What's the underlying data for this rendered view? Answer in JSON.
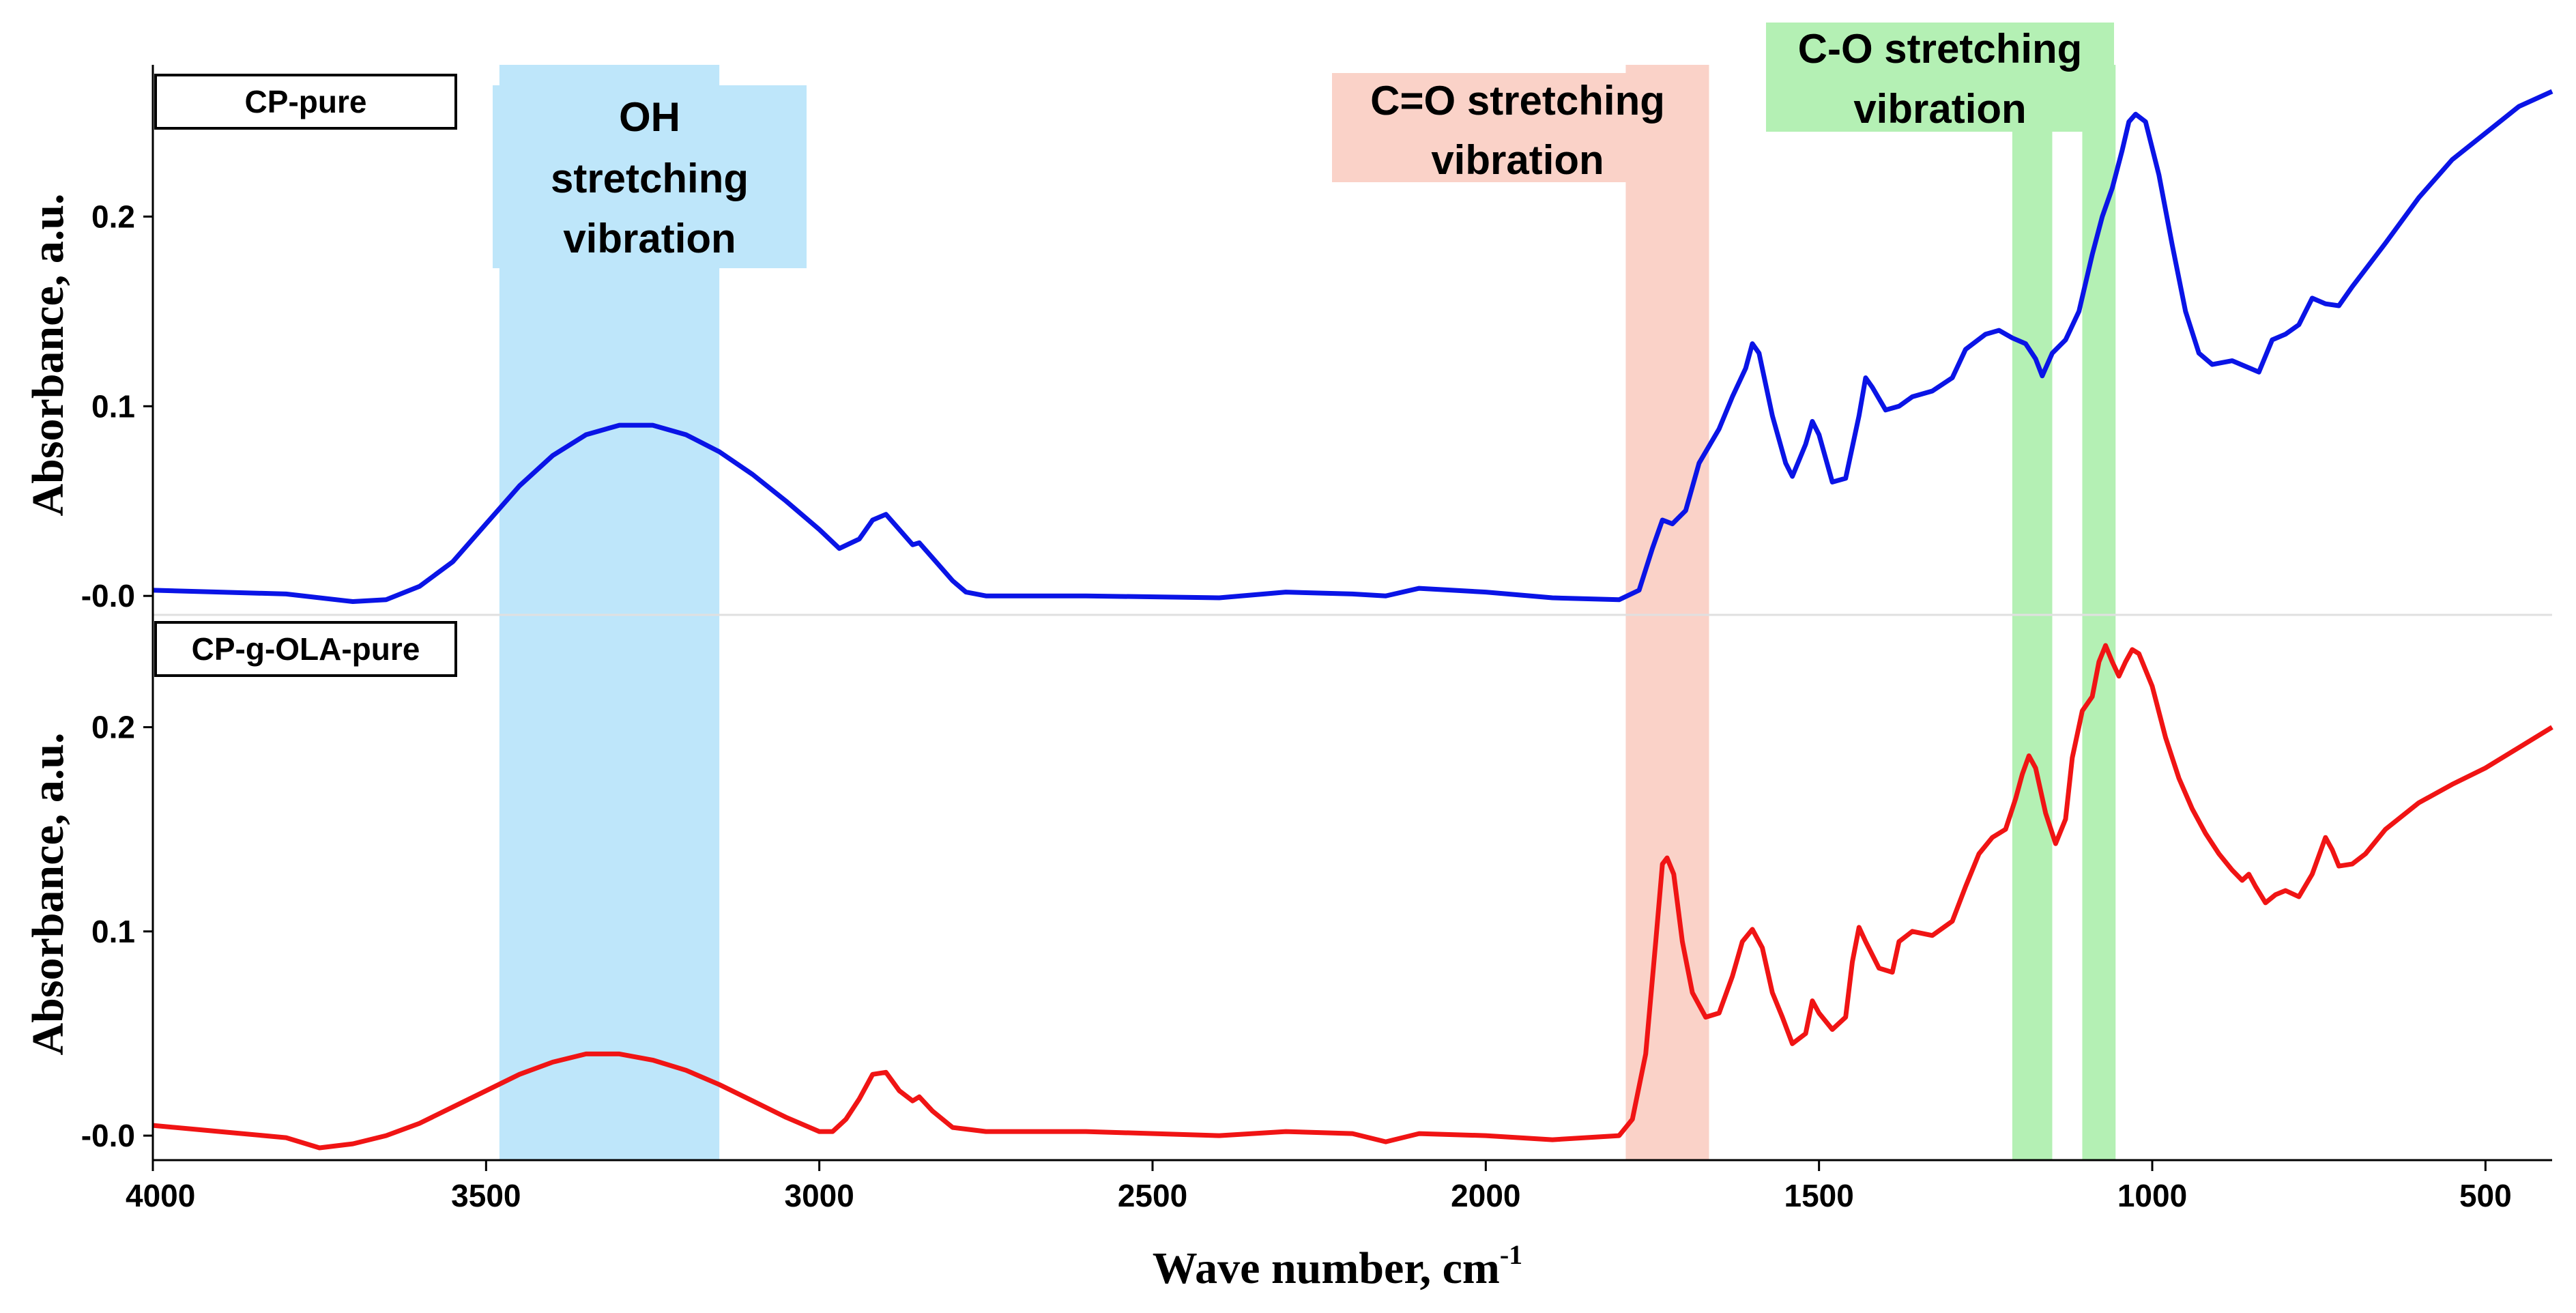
{
  "chart_data": {
    "type": "line",
    "xlabel": "Wave number, cm",
    "xlabel_sup": "-1",
    "xlim": [
      4000,
      400
    ],
    "x_ticks": [
      4000,
      3500,
      3000,
      2500,
      2000,
      1500,
      1000,
      500
    ],
    "y_ticks": [
      "-0.0",
      "0.1",
      "0.2"
    ],
    "panels": [
      {
        "name": "CP-pure",
        "ylabel": "Absorbance, a.u.",
        "ylim": [
          -0.01,
          0.28
        ],
        "color": "#0a14e6",
        "series": [
          [
            4000,
            0.003
          ],
          [
            3900,
            0.002
          ],
          [
            3800,
            0.001
          ],
          [
            3700,
            -0.003
          ],
          [
            3650,
            -0.002
          ],
          [
            3600,
            0.005
          ],
          [
            3550,
            0.018
          ],
          [
            3500,
            0.038
          ],
          [
            3450,
            0.058
          ],
          [
            3400,
            0.074
          ],
          [
            3350,
            0.085
          ],
          [
            3300,
            0.09
          ],
          [
            3250,
            0.09
          ],
          [
            3200,
            0.085
          ],
          [
            3150,
            0.076
          ],
          [
            3100,
            0.064
          ],
          [
            3050,
            0.05
          ],
          [
            3000,
            0.035
          ],
          [
            2970,
            0.025
          ],
          [
            2940,
            0.03
          ],
          [
            2920,
            0.04
          ],
          [
            2900,
            0.043
          ],
          [
            2880,
            0.035
          ],
          [
            2860,
            0.027
          ],
          [
            2850,
            0.028
          ],
          [
            2830,
            0.02
          ],
          [
            2800,
            0.008
          ],
          [
            2780,
            0.002
          ],
          [
            2750,
            0.0
          ],
          [
            2600,
            0.0
          ],
          [
            2400,
            -0.001
          ],
          [
            2300,
            0.002
          ],
          [
            2200,
            0.001
          ],
          [
            2150,
            0.0
          ],
          [
            2100,
            0.004
          ],
          [
            2000,
            0.002
          ],
          [
            1900,
            -0.001
          ],
          [
            1800,
            -0.002
          ],
          [
            1770,
            0.003
          ],
          [
            1750,
            0.025
          ],
          [
            1735,
            0.04
          ],
          [
            1720,
            0.038
          ],
          [
            1700,
            0.045
          ],
          [
            1680,
            0.07
          ],
          [
            1650,
            0.088
          ],
          [
            1630,
            0.105
          ],
          [
            1610,
            0.12
          ],
          [
            1600,
            0.133
          ],
          [
            1590,
            0.128
          ],
          [
            1570,
            0.095
          ],
          [
            1550,
            0.07
          ],
          [
            1540,
            0.063
          ],
          [
            1520,
            0.08
          ],
          [
            1510,
            0.092
          ],
          [
            1500,
            0.085
          ],
          [
            1480,
            0.06
          ],
          [
            1460,
            0.062
          ],
          [
            1440,
            0.095
          ],
          [
            1430,
            0.115
          ],
          [
            1420,
            0.11
          ],
          [
            1400,
            0.098
          ],
          [
            1380,
            0.1
          ],
          [
            1360,
            0.105
          ],
          [
            1330,
            0.108
          ],
          [
            1300,
            0.115
          ],
          [
            1280,
            0.13
          ],
          [
            1250,
            0.138
          ],
          [
            1230,
            0.14
          ],
          [
            1210,
            0.136
          ],
          [
            1190,
            0.133
          ],
          [
            1175,
            0.125
          ],
          [
            1165,
            0.116
          ],
          [
            1150,
            0.128
          ],
          [
            1130,
            0.135
          ],
          [
            1110,
            0.15
          ],
          [
            1090,
            0.18
          ],
          [
            1075,
            0.2
          ],
          [
            1060,
            0.215
          ],
          [
            1045,
            0.235
          ],
          [
            1035,
            0.25
          ],
          [
            1025,
            0.254
          ],
          [
            1010,
            0.25
          ],
          [
            990,
            0.222
          ],
          [
            970,
            0.185
          ],
          [
            950,
            0.15
          ],
          [
            930,
            0.128
          ],
          [
            910,
            0.122
          ],
          [
            880,
            0.124
          ],
          [
            860,
            0.121
          ],
          [
            840,
            0.118
          ],
          [
            820,
            0.135
          ],
          [
            800,
            0.138
          ],
          [
            780,
            0.143
          ],
          [
            760,
            0.157
          ],
          [
            740,
            0.154
          ],
          [
            720,
            0.153
          ],
          [
            700,
            0.163
          ],
          [
            650,
            0.186
          ],
          [
            600,
            0.21
          ],
          [
            550,
            0.23
          ],
          [
            500,
            0.244
          ],
          [
            450,
            0.258
          ],
          [
            400,
            0.266
          ]
        ]
      },
      {
        "name": "CP-g-OLA-pure",
        "ylabel": "Absorbance, a.u.",
        "ylim": [
          -0.012,
          0.255
        ],
        "color": "#f01414",
        "series": [
          [
            4000,
            0.005
          ],
          [
            3900,
            0.002
          ],
          [
            3800,
            -0.001
          ],
          [
            3750,
            -0.006
          ],
          [
            3700,
            -0.004
          ],
          [
            3650,
            0.0
          ],
          [
            3600,
            0.006
          ],
          [
            3550,
            0.014
          ],
          [
            3500,
            0.022
          ],
          [
            3450,
            0.03
          ],
          [
            3400,
            0.036
          ],
          [
            3350,
            0.04
          ],
          [
            3300,
            0.04
          ],
          [
            3250,
            0.037
          ],
          [
            3200,
            0.032
          ],
          [
            3150,
            0.025
          ],
          [
            3100,
            0.017
          ],
          [
            3050,
            0.009
          ],
          [
            3000,
            0.002
          ],
          [
            2980,
            0.002
          ],
          [
            2960,
            0.008
          ],
          [
            2940,
            0.018
          ],
          [
            2920,
            0.03
          ],
          [
            2900,
            0.031
          ],
          [
            2880,
            0.022
          ],
          [
            2860,
            0.017
          ],
          [
            2850,
            0.019
          ],
          [
            2830,
            0.012
          ],
          [
            2800,
            0.004
          ],
          [
            2750,
            0.002
          ],
          [
            2600,
            0.002
          ],
          [
            2400,
            0.0
          ],
          [
            2300,
            0.002
          ],
          [
            2200,
            0.001
          ],
          [
            2150,
            -0.003
          ],
          [
            2100,
            0.001
          ],
          [
            2000,
            0.0
          ],
          [
            1900,
            -0.002
          ],
          [
            1800,
            0.0
          ],
          [
            1780,
            0.008
          ],
          [
            1760,
            0.04
          ],
          [
            1745,
            0.095
          ],
          [
            1735,
            0.133
          ],
          [
            1728,
            0.136
          ],
          [
            1718,
            0.128
          ],
          [
            1705,
            0.095
          ],
          [
            1690,
            0.07
          ],
          [
            1670,
            0.058
          ],
          [
            1650,
            0.06
          ],
          [
            1630,
            0.078
          ],
          [
            1615,
            0.095
          ],
          [
            1600,
            0.101
          ],
          [
            1585,
            0.092
          ],
          [
            1570,
            0.07
          ],
          [
            1555,
            0.058
          ],
          [
            1540,
            0.045
          ],
          [
            1520,
            0.05
          ],
          [
            1510,
            0.066
          ],
          [
            1500,
            0.06
          ],
          [
            1480,
            0.052
          ],
          [
            1460,
            0.058
          ],
          [
            1450,
            0.085
          ],
          [
            1440,
            0.102
          ],
          [
            1430,
            0.095
          ],
          [
            1410,
            0.082
          ],
          [
            1390,
            0.08
          ],
          [
            1380,
            0.095
          ],
          [
            1360,
            0.1
          ],
          [
            1330,
            0.098
          ],
          [
            1300,
            0.105
          ],
          [
            1280,
            0.122
          ],
          [
            1260,
            0.138
          ],
          [
            1240,
            0.146
          ],
          [
            1220,
            0.15
          ],
          [
            1205,
            0.165
          ],
          [
            1195,
            0.177
          ],
          [
            1185,
            0.186
          ],
          [
            1175,
            0.18
          ],
          [
            1160,
            0.158
          ],
          [
            1145,
            0.143
          ],
          [
            1130,
            0.155
          ],
          [
            1120,
            0.185
          ],
          [
            1105,
            0.208
          ],
          [
            1090,
            0.215
          ],
          [
            1080,
            0.232
          ],
          [
            1070,
            0.24
          ],
          [
            1060,
            0.232
          ],
          [
            1050,
            0.225
          ],
          [
            1040,
            0.232
          ],
          [
            1030,
            0.238
          ],
          [
            1020,
            0.236
          ],
          [
            1000,
            0.22
          ],
          [
            980,
            0.195
          ],
          [
            960,
            0.175
          ],
          [
            940,
            0.16
          ],
          [
            920,
            0.148
          ],
          [
            900,
            0.138
          ],
          [
            880,
            0.13
          ],
          [
            865,
            0.125
          ],
          [
            855,
            0.128
          ],
          [
            845,
            0.122
          ],
          [
            830,
            0.114
          ],
          [
            815,
            0.118
          ],
          [
            800,
            0.12
          ],
          [
            780,
            0.117
          ],
          [
            760,
            0.128
          ],
          [
            740,
            0.146
          ],
          [
            730,
            0.14
          ],
          [
            720,
            0.132
          ],
          [
            700,
            0.133
          ],
          [
            680,
            0.138
          ],
          [
            650,
            0.15
          ],
          [
            600,
            0.163
          ],
          [
            550,
            0.172
          ],
          [
            500,
            0.18
          ],
          [
            450,
            0.19
          ],
          [
            400,
            0.2
          ]
        ]
      }
    ],
    "bands": [
      {
        "name": "oh",
        "range": [
          3480,
          3150
        ],
        "color": "#bee6fa",
        "label_lines": [
          "OH",
          "stretching",
          "vibration"
        ]
      },
      {
        "name": "co-double",
        "range": [
          1790,
          1665
        ],
        "color": "#fad2c8",
        "label_lines": [
          "C=O stretching",
          "vibration"
        ]
      },
      {
        "name": "co-single-a",
        "range": [
          1210,
          1150
        ],
        "color": "#b4f0b4",
        "label_lines": [
          "C-O stretching",
          "vibration"
        ]
      },
      {
        "name": "co-single-b",
        "range": [
          1105,
          1055
        ],
        "color": "#b4f0b4",
        "label_lines": []
      }
    ]
  }
}
